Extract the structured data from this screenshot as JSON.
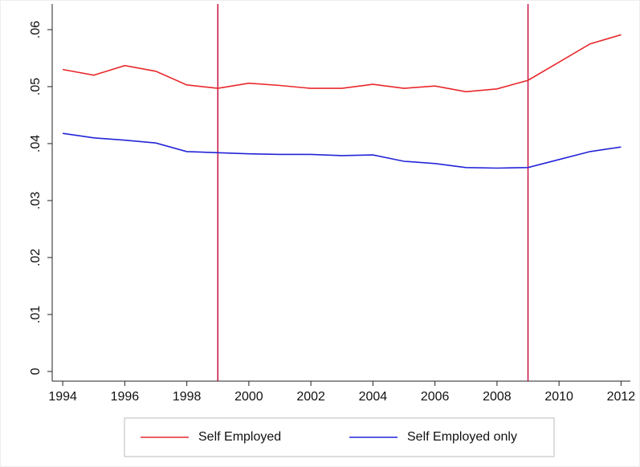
{
  "chart_data": {
    "type": "line",
    "x": [
      1994,
      1995,
      1996,
      1997,
      1998,
      1999,
      2000,
      2001,
      2002,
      2003,
      2004,
      2005,
      2006,
      2007,
      2008,
      2009,
      2010,
      2011,
      2012
    ],
    "series": [
      {
        "name": "Self Employed",
        "color": "#e8282b",
        "values": [
          0.053,
          0.052,
          0.0537,
          0.0527,
          0.0503,
          0.0497,
          0.0506,
          0.0502,
          0.0497,
          0.0497,
          0.0504,
          0.0497,
          0.0501,
          0.0491,
          0.0496,
          0.0511,
          0.0543,
          0.0575,
          0.0591
        ]
      },
      {
        "name": "Self Employed only",
        "color": "#2424d8",
        "values": [
          0.0418,
          0.041,
          0.0406,
          0.0401,
          0.0386,
          0.0384,
          0.0382,
          0.0381,
          0.0381,
          0.0379,
          0.038,
          0.0369,
          0.0365,
          0.0358,
          0.0357,
          0.0358,
          0.0372,
          0.0386,
          0.0394
        ]
      }
    ],
    "xlim": [
      1993.66,
      2012.3
    ],
    "xticks": [
      1994,
      1996,
      1998,
      2000,
      2002,
      2004,
      2006,
      2008,
      2010,
      2012
    ],
    "ylim": [
      -0.0017,
      0.0645
    ],
    "yticks": [
      0,
      {
        "value": 0.01,
        "label": ".01"
      },
      {
        "value": 0.02,
        "label": ".02"
      },
      {
        "value": 0.03,
        "label": ".03"
      },
      {
        "value": 0.04,
        "label": ".04"
      },
      {
        "value": 0.05,
        "label": ".05"
      },
      {
        "value": 0.06,
        "label": ".06"
      }
    ],
    "vlines": [
      1999,
      2009
    ],
    "vline_color": "#c8103e",
    "legend": "bottom"
  }
}
